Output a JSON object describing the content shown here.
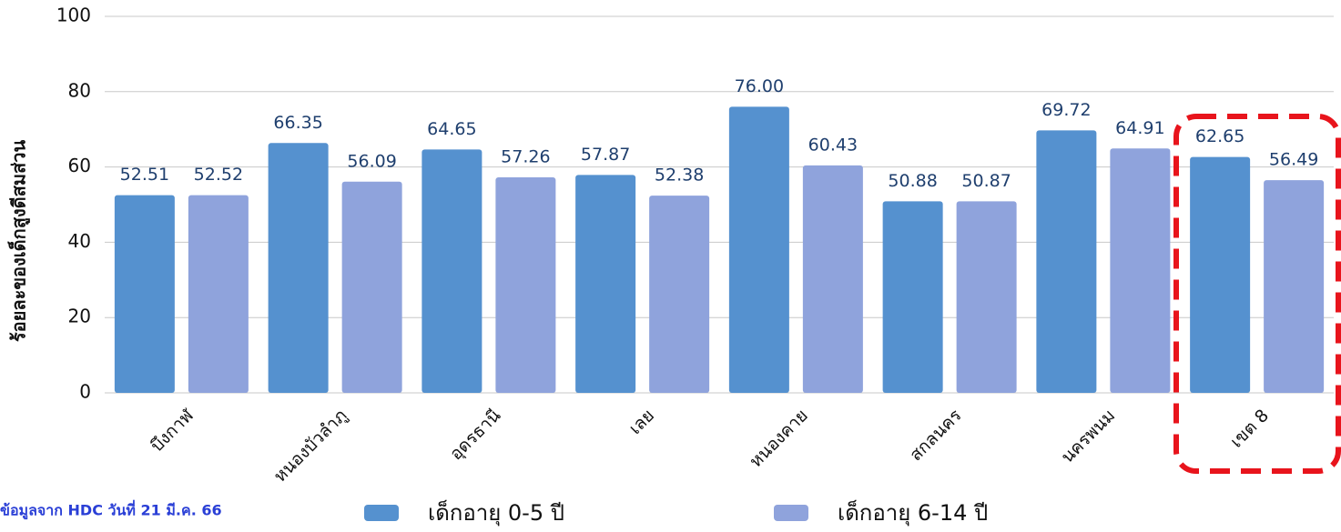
{
  "chart_data": {
    "type": "bar",
    "y_label": "ร้อยละของเด็กสูงดีสมส่วน",
    "source": "ข้อมูลจาก HDC วันที่ 21 มี.ค. 66",
    "categories": [
      "บึงกาฬ",
      "หนองบัวลำภู",
      "อุดรธานี",
      "เลย",
      "หนองคาย",
      "สกลนคร",
      "นครพนม",
      "เขต 8"
    ],
    "series": [
      {
        "name": "เด็กอายุ 0-5 ปี",
        "color": "#5591cf",
        "values": [
          52.51,
          66.35,
          64.65,
          57.87,
          76.0,
          50.88,
          69.72,
          62.65
        ],
        "value_labels": [
          "52.51",
          "66.35",
          "64.65",
          "57.87",
          "76.00",
          "50.88",
          "69.72",
          "62.65"
        ]
      },
      {
        "name": "เด็กอายุ 6-14 ปี",
        "color": "#8fa3dc",
        "values": [
          52.52,
          56.09,
          57.26,
          52.38,
          60.43,
          50.87,
          64.91,
          56.49
        ],
        "value_labels": [
          "52.52",
          "56.09",
          "57.26",
          "52.38",
          "60.43",
          "50.87",
          "64.91",
          "56.49"
        ]
      }
    ],
    "ylim": [
      0,
      100
    ],
    "yticks": [
      0,
      20,
      40,
      60,
      80,
      100
    ],
    "grid": true
  }
}
